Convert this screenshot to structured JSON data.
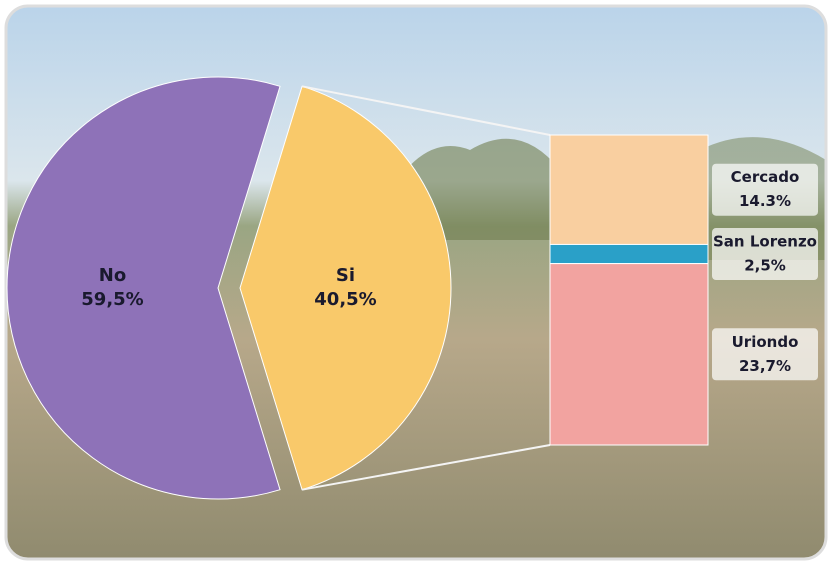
{
  "chart_data": {
    "type": "pie-of-bar",
    "categories": [
      "No",
      "Si"
    ],
    "values": [
      59.5,
      40.5
    ],
    "value_labels": [
      "59,5%",
      "40,5%"
    ],
    "colors": [
      "#8e72b8",
      "#f9c96a"
    ],
    "breakdown": {
      "categories": [
        "Cercado",
        "San Lorenzo",
        "Uriondo"
      ],
      "values": [
        14.3,
        2.5,
        23.7
      ],
      "value_labels": [
        "14.3%",
        "2,5%",
        "23,7%"
      ],
      "colors": [
        "#f9cfa0",
        "#2aa0c8",
        "#f2a3a0"
      ]
    }
  }
}
